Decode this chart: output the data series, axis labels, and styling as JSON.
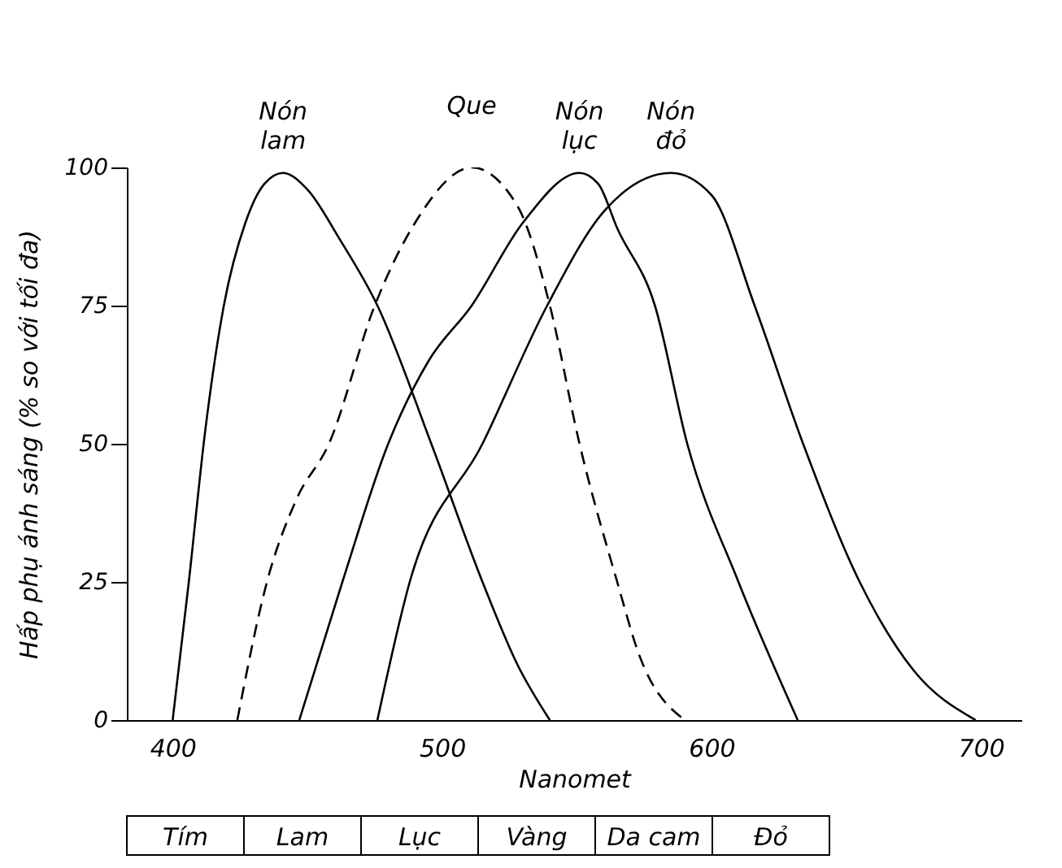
{
  "chart_data": {
    "type": "line",
    "xlabel": "Nanomet",
    "ylabel": "Hấp phụ ánh sáng (% so với tối đa)",
    "xlim": [
      383,
      715
    ],
    "ylim": [
      0,
      100
    ],
    "xticks": [
      400,
      500,
      600,
      700
    ],
    "yticks": [
      0,
      25,
      50,
      75,
      100
    ],
    "grid": false,
    "marker": "none",
    "series": [
      {
        "name": "Nón lam",
        "color": "#000000",
        "line_style": "solid",
        "x": [
          400,
          406,
          412,
          419,
          427,
          434,
          441,
          450,
          462,
          476,
          496,
          515,
          528,
          540
        ],
        "values": [
          0,
          25,
          52,
          75,
          90,
          97,
          99,
          96,
          87,
          75,
          50,
          25,
          10,
          0
        ]
      },
      {
        "name": "Que",
        "color": "#000000",
        "line_style": "dashed",
        "x": [
          424,
          435,
          446,
          458,
          475,
          490,
          511,
          528,
          540,
          551,
          565,
          573,
          590
        ],
        "values": [
          0,
          25,
          40,
          50,
          75,
          90,
          100,
          93,
          75,
          50,
          25,
          12,
          0
        ]
      },
      {
        "name": "Nón lục",
        "color": "#000000",
        "line_style": "solid",
        "x": [
          447,
          463,
          480,
          495,
          511,
          530,
          551,
          558,
          565,
          579,
          591,
          610,
          632
        ],
        "values": [
          0,
          25,
          50,
          65,
          75,
          90,
          99,
          97,
          89,
          75,
          50,
          25,
          0
        ]
      },
      {
        "name": "Nón đỏ",
        "color": "#000000",
        "line_style": "solid",
        "x": [
          476,
          488,
          515,
          539,
          560,
          585,
          600,
          616,
          634,
          655,
          675,
          698
        ],
        "values": [
          0,
          25,
          50,
          75,
          92,
          99,
          95,
          75,
          50,
          25,
          9,
          0
        ]
      }
    ],
    "annotations": [
      "Tím",
      "Lam",
      "Lục",
      "Vàng",
      "Da cam",
      "Đỏ"
    ]
  }
}
